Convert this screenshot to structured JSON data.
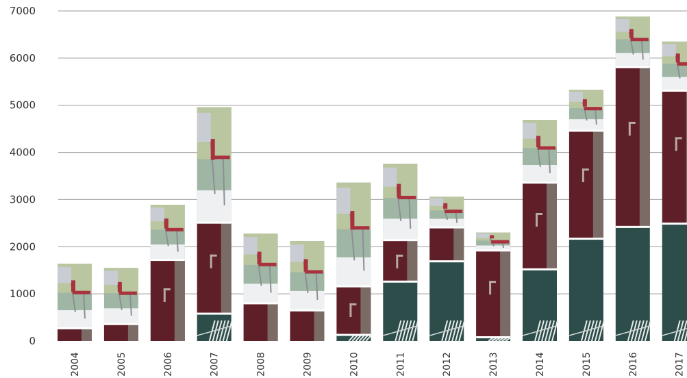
{
  "chart_data": {
    "type": "bar",
    "stacked": true,
    "categories": [
      "2004",
      "2005",
      "2006",
      "2007",
      "2008",
      "2009",
      "2010",
      "2011",
      "2012",
      "2013",
      "2014",
      "2015",
      "2016",
      "2017"
    ],
    "series": [
      {
        "values": [
          0,
          0,
          0,
          580,
          0,
          0,
          130,
          1260,
          1690,
          80,
          1520,
          2170,
          2420,
          2490
        ]
      },
      {
        "values": [
          270,
          360,
          1720,
          1930,
          800,
          650,
          1030,
          880,
          720,
          1840,
          1840,
          2290,
          3390,
          2820
        ]
      },
      {
        "values": [
          1370,
          1190,
          1170,
          2450,
          1480,
          1470,
          2200,
          1620,
          650,
          380,
          1330,
          870,
          1070,
          1040
        ]
      }
    ],
    "ylim": [
      0,
      7000
    ],
    "yticks": [
      "0",
      "1000",
      "2000",
      "3000",
      "4000",
      "5000",
      "6000",
      "7000"
    ],
    "grid": true,
    "colors": {
      "segment1": "#2d4d4a",
      "segment2": "#5e1f28",
      "segment3": "#9fb6a4",
      "segment2_edge": "#7b6b66",
      "grid": "#9a9a9a"
    },
    "icons": [
      "striped-chair-photo-icon",
      "door-handle-icon",
      "chair-on-balcony-photo-icon"
    ]
  }
}
